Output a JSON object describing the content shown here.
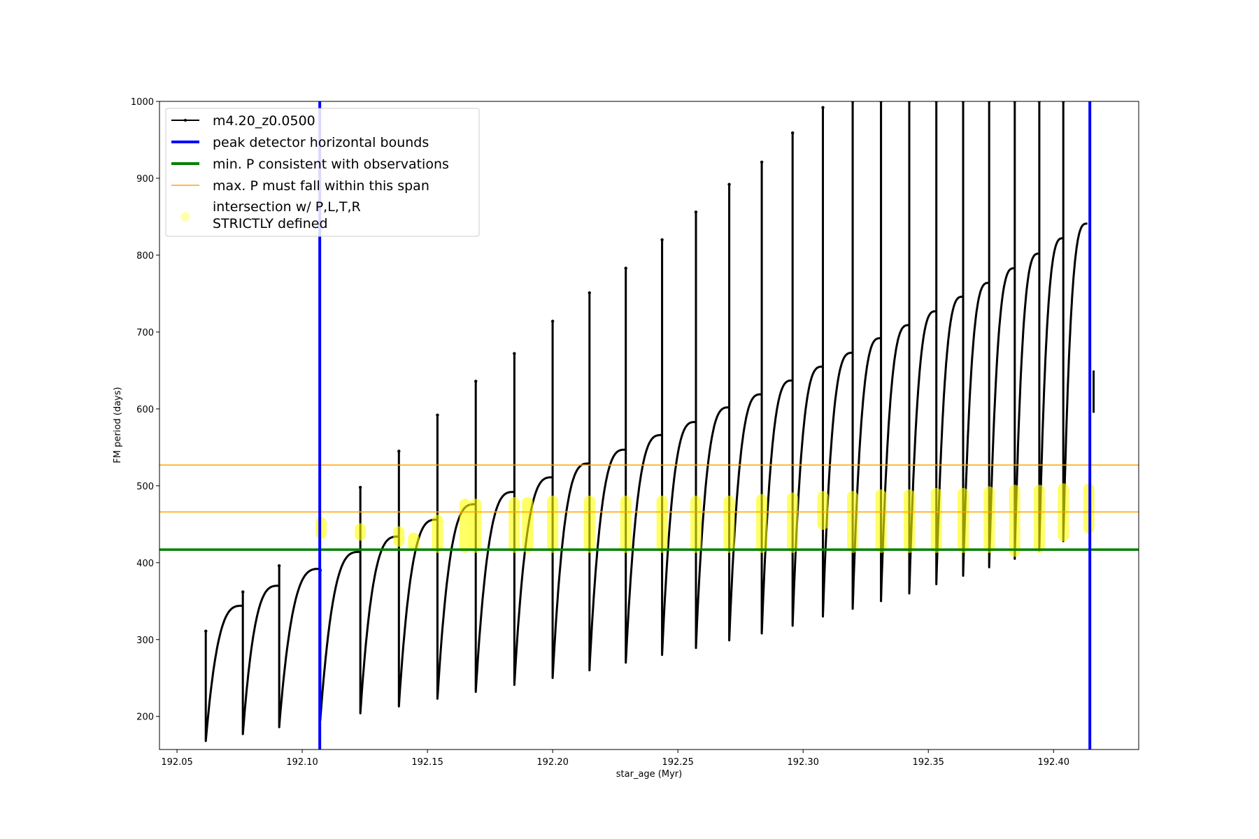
{
  "chart_data": {
    "type": "line",
    "xlabel": "star_age (Myr)",
    "ylabel": "FM period (days)",
    "xlim": [
      192.043,
      192.434
    ],
    "ylim": [
      157,
      1000
    ],
    "x_ticks": [
      "192.05",
      "192.10",
      "192.15",
      "192.20",
      "192.25",
      "192.30",
      "192.35",
      "192.40"
    ],
    "y_ticks": [
      "200",
      "300",
      "400",
      "500",
      "600",
      "700",
      "800",
      "900",
      "1000"
    ],
    "grid": false,
    "legend_position": "upper-left",
    "legend": [
      {
        "label": "m4.20_z0.0500",
        "kind": "line-marker",
        "color": "#000000"
      },
      {
        "label": "peak detector horizontal bounds",
        "kind": "line",
        "color": "#0000ff"
      },
      {
        "label": "min. P consistent with observations",
        "kind": "line",
        "color": "#008000"
      },
      {
        "label": "max. P must fall within this span",
        "kind": "line",
        "color": "#ffa500"
      },
      {
        "label": "intersection w/ P,L,T,R",
        "label2": "STRICTLY defined",
        "kind": "marker",
        "color": "#ffff00"
      }
    ],
    "vertical_lines": {
      "color": "#0000ff",
      "x": [
        192.107,
        192.4145
      ]
    },
    "horizontal_lines": [
      {
        "color": "#008000",
        "y": 417
      },
      {
        "color": "#ffa500",
        "y": 527
      },
      {
        "color": "#ffa500",
        "y": 466
      }
    ],
    "series": [
      {
        "name": "m4.20_z0.0500",
        "color": "#000000",
        "cycles": [
          {
            "start": 192.0615,
            "end": 192.0763,
            "min": 168,
            "max": 344,
            "spike": 311
          },
          {
            "start": 192.0763,
            "end": 192.0908,
            "min": 177,
            "max": 370,
            "spike": 362
          },
          {
            "start": 192.0908,
            "end": 192.1072,
            "min": 186,
            "max": 392,
            "spike": 396
          },
          {
            "start": 192.1072,
            "end": 192.1232,
            "min": 195,
            "max": 414,
            "spike": 390
          },
          {
            "start": 192.1232,
            "end": 192.1386,
            "min": 204,
            "max": 434,
            "spike": 498
          },
          {
            "start": 192.1386,
            "end": 192.154,
            "min": 213,
            "max": 456,
            "spike": 545
          },
          {
            "start": 192.154,
            "end": 192.1693,
            "min": 223,
            "max": 476,
            "spike": 592
          },
          {
            "start": 192.1693,
            "end": 192.1847,
            "min": 232,
            "max": 492,
            "spike": 636
          },
          {
            "start": 192.1847,
            "end": 192.2,
            "min": 241,
            "max": 511,
            "spike": 672
          },
          {
            "start": 192.2,
            "end": 192.2147,
            "min": 250,
            "max": 529,
            "spike": 714
          },
          {
            "start": 192.2147,
            "end": 192.2292,
            "min": 260,
            "max": 547,
            "spike": 751
          },
          {
            "start": 192.2292,
            "end": 192.2437,
            "min": 270,
            "max": 566,
            "spike": 783
          },
          {
            "start": 192.2437,
            "end": 192.2572,
            "min": 280,
            "max": 583,
            "spike": 820
          },
          {
            "start": 192.2572,
            "end": 192.2705,
            "min": 289,
            "max": 602,
            "spike": 856
          },
          {
            "start": 192.2705,
            "end": 192.2835,
            "min": 299,
            "max": 619,
            "spike": 892
          },
          {
            "start": 192.2835,
            "end": 192.2958,
            "min": 308,
            "max": 637,
            "spike": 921
          },
          {
            "start": 192.2958,
            "end": 192.3079,
            "min": 318,
            "max": 655,
            "spike": 959
          },
          {
            "start": 192.3079,
            "end": 192.3198,
            "min": 330,
            "max": 673,
            "spike": 992
          },
          {
            "start": 192.3198,
            "end": 192.3311,
            "min": 340,
            "max": 692,
            "spike": 1000
          },
          {
            "start": 192.3311,
            "end": 192.3424,
            "min": 350,
            "max": 709,
            "spike": 1000
          },
          {
            "start": 192.3424,
            "end": 192.3532,
            "min": 360,
            "max": 727,
            "spike": 1000
          },
          {
            "start": 192.3532,
            "end": 192.3639,
            "min": 372,
            "max": 746,
            "spike": 1000
          },
          {
            "start": 192.3639,
            "end": 192.3743,
            "min": 383,
            "max": 764,
            "spike": 1000
          },
          {
            "start": 192.3743,
            "end": 192.3845,
            "min": 394,
            "max": 783,
            "spike": 1000
          },
          {
            "start": 192.3845,
            "end": 192.3943,
            "min": 405,
            "max": 802,
            "spike": 1000
          },
          {
            "start": 192.3943,
            "end": 192.4039,
            "min": 416,
            "max": 822,
            "spike": 1000
          },
          {
            "start": 192.4039,
            "end": 192.4135,
            "min": 428,
            "max": 841,
            "spike": 1000
          }
        ],
        "tail": {
          "x": 192.416,
          "min": 595,
          "max": 650
        }
      },
      {
        "name": "intersection w/ P,L,T,R STRICTLY defined",
        "color": "#ffff00",
        "bands": [
          {
            "x": 192.1075,
            "y0": 438,
            "y1": 452
          },
          {
            "x": 192.1232,
            "y0": 436,
            "y1": 444
          },
          {
            "x": 192.1386,
            "y0": 428,
            "y1": 440
          },
          {
            "x": 192.1445,
            "y0": 422,
            "y1": 432
          },
          {
            "x": 192.154,
            "y0": 420,
            "y1": 455
          },
          {
            "x": 192.165,
            "y0": 420,
            "y1": 476
          },
          {
            "x": 192.1693,
            "y0": 420,
            "y1": 476
          },
          {
            "x": 192.1847,
            "y0": 420,
            "y1": 478
          },
          {
            "x": 192.19,
            "y0": 420,
            "y1": 478
          },
          {
            "x": 192.2,
            "y0": 420,
            "y1": 480
          },
          {
            "x": 192.2147,
            "y0": 420,
            "y1": 480
          },
          {
            "x": 192.2292,
            "y0": 420,
            "y1": 480
          },
          {
            "x": 192.2437,
            "y0": 420,
            "y1": 480
          },
          {
            "x": 192.2572,
            "y0": 420,
            "y1": 480
          },
          {
            "x": 192.2705,
            "y0": 420,
            "y1": 480
          },
          {
            "x": 192.2835,
            "y0": 420,
            "y1": 482
          },
          {
            "x": 192.2958,
            "y0": 420,
            "y1": 484
          },
          {
            "x": 192.3079,
            "y0": 450,
            "y1": 486
          },
          {
            "x": 192.3198,
            "y0": 420,
            "y1": 486
          },
          {
            "x": 192.3311,
            "y0": 420,
            "y1": 488
          },
          {
            "x": 192.3424,
            "y0": 420,
            "y1": 488
          },
          {
            "x": 192.3532,
            "y0": 420,
            "y1": 490
          },
          {
            "x": 192.3639,
            "y0": 420,
            "y1": 490
          },
          {
            "x": 192.3743,
            "y0": 420,
            "y1": 492
          },
          {
            "x": 192.3845,
            "y0": 415,
            "y1": 494
          },
          {
            "x": 192.3943,
            "y0": 420,
            "y1": 494
          },
          {
            "x": 192.4039,
            "y0": 435,
            "y1": 496
          },
          {
            "x": 192.4141,
            "y0": 445,
            "y1": 496
          }
        ]
      }
    ]
  }
}
